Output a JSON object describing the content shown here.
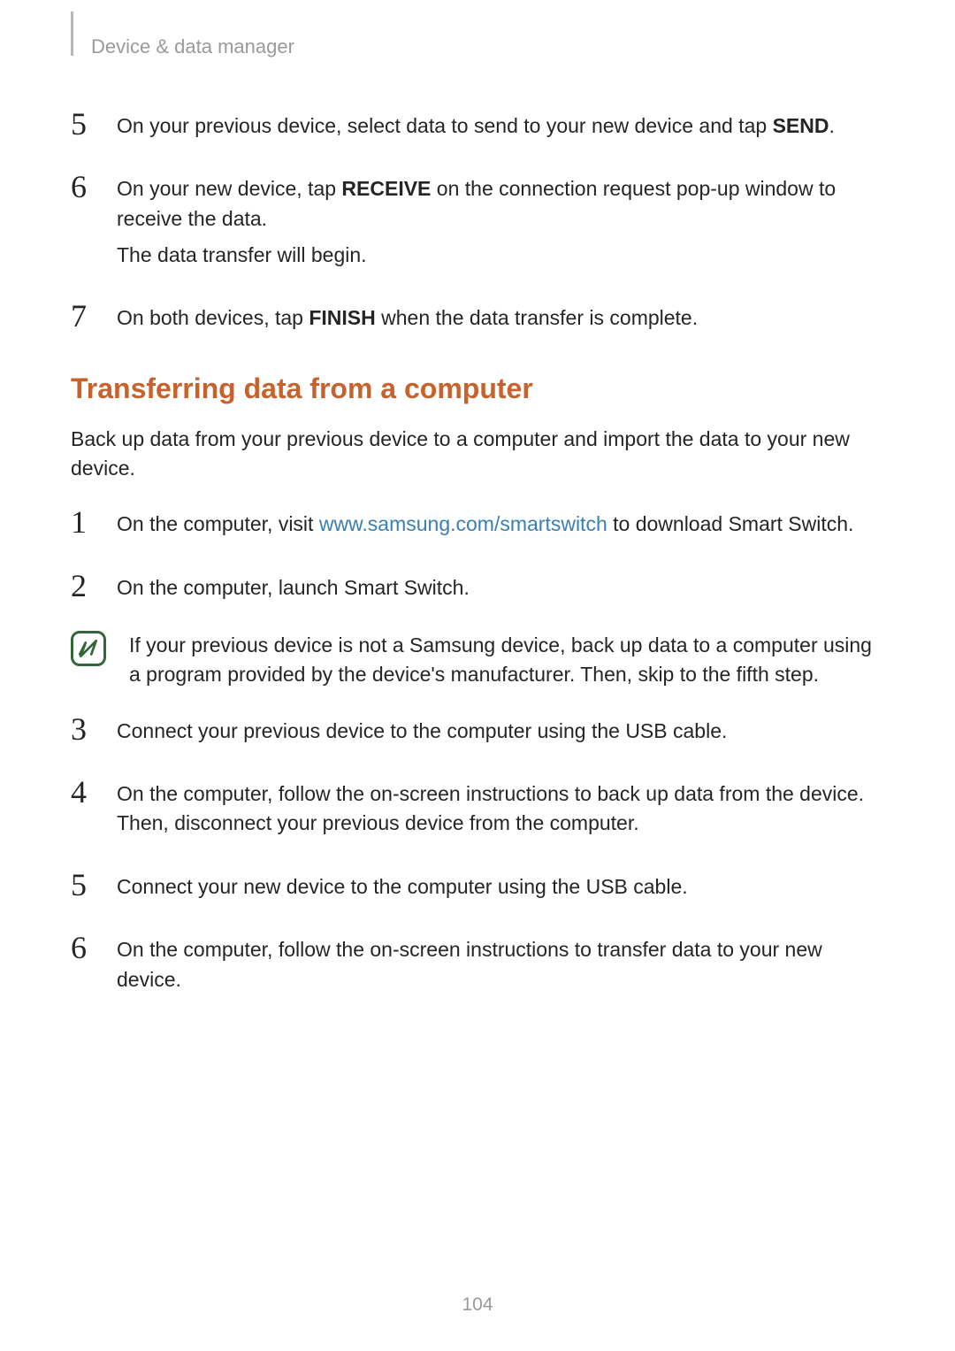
{
  "breadcrumb": "Device & data manager",
  "part1": {
    "steps": [
      {
        "num": "5",
        "lines": [
          {
            "segments": [
              {
                "text": "On your previous device, select data to send to your new device and tap "
              },
              {
                "text": "SEND",
                "bold": true
              },
              {
                "text": "."
              }
            ]
          }
        ]
      },
      {
        "num": "6",
        "lines": [
          {
            "segments": [
              {
                "text": "On your new device, tap "
              },
              {
                "text": "RECEIVE",
                "bold": true
              },
              {
                "text": " on the connection request pop-up window to receive the data."
              }
            ]
          },
          {
            "segments": [
              {
                "text": "The data transfer will begin."
              }
            ]
          }
        ]
      },
      {
        "num": "7",
        "lines": [
          {
            "segments": [
              {
                "text": "On both devices, tap "
              },
              {
                "text": "FINISH",
                "bold": true
              },
              {
                "text": " when the data transfer is complete."
              }
            ]
          }
        ]
      }
    ]
  },
  "heading": "Transferring data from a computer",
  "intro": "Back up data from your previous device to a computer and import the data to your new device.",
  "part2": {
    "steps": [
      {
        "num": "1",
        "lines": [
          {
            "segments": [
              {
                "text": "On the computer, visit "
              },
              {
                "text": "www.samsung.com/smartswitch",
                "link": true
              },
              {
                "text": " to download Smart Switch."
              }
            ]
          }
        ]
      },
      {
        "num": "2",
        "lines": [
          {
            "segments": [
              {
                "text": "On the computer, launch Smart Switch."
              }
            ]
          }
        ]
      }
    ],
    "note": "If your previous device is not a Samsung device, back up data to a computer using a program provided by the device's manufacturer. Then, skip to the fifth step.",
    "steps2": [
      {
        "num": "3",
        "lines": [
          {
            "segments": [
              {
                "text": "Connect your previous device to the computer using the USB cable."
              }
            ]
          }
        ]
      },
      {
        "num": "4",
        "lines": [
          {
            "segments": [
              {
                "text": "On the computer, follow the on-screen instructions to back up data from the device. Then, disconnect your previous device from the computer."
              }
            ]
          }
        ]
      },
      {
        "num": "5",
        "lines": [
          {
            "segments": [
              {
                "text": "Connect your new device to the computer using the USB cable."
              }
            ]
          }
        ]
      },
      {
        "num": "6",
        "lines": [
          {
            "segments": [
              {
                "text": "On the computer, follow the on-screen instructions to transfer data to your new device."
              }
            ]
          }
        ]
      }
    ]
  },
  "pageNumber": "104",
  "colors": {
    "heading": "#c8622c",
    "link": "#3a7fb0",
    "text": "#252525",
    "muted": "#9a9a9a",
    "noteBorder": "#356639"
  }
}
